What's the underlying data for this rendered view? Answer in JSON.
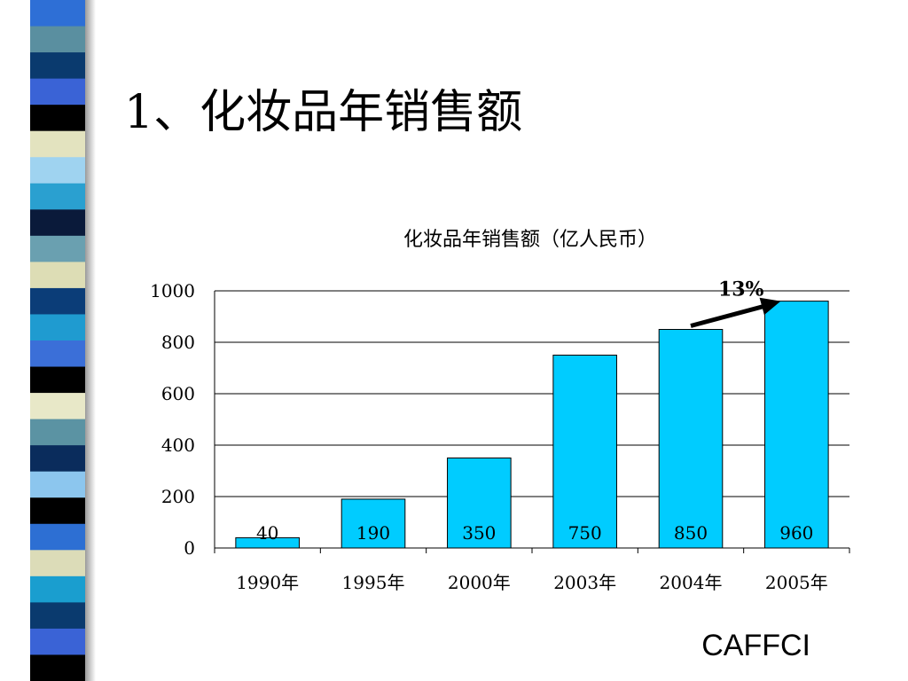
{
  "slide": {
    "title": "1、化妆品年销售额",
    "footer": "CAFFCI"
  },
  "colors": {
    "bar": "#00ccff",
    "grid": "#000000",
    "stripes": [
      "#2e6fd6",
      "#5a8fa0",
      "#0a3a6e",
      "#3a63d6",
      "#000000",
      "#e3e3bf",
      "#9fd3f0",
      "#2aa0d0",
      "#0a1a3a",
      "#6aa0b0",
      "#ddddb5",
      "#0b3d78",
      "#1f9bd0",
      "#3b6fd8",
      "#000000",
      "#e8e8c8",
      "#5b93a3",
      "#0a2c5c",
      "#8cc6ee",
      "#000000",
      "#2d6fd3",
      "#dcdcb8",
      "#1a9ecf",
      "#0a3a6e",
      "#3a63d6",
      "#000000"
    ]
  },
  "chart_data": {
    "type": "bar",
    "title": "化妆品年销售额（亿人民币）",
    "categories": [
      "1990年",
      "1995年",
      "2000年",
      "2003年",
      "2004年",
      "2005年"
    ],
    "values": [
      40,
      190,
      350,
      750,
      850,
      960
    ],
    "data_labels": [
      "40",
      "190",
      "350",
      "750",
      "850",
      "960"
    ],
    "ylim": [
      0,
      1000
    ],
    "yticks": [
      "0",
      "200",
      "400",
      "600",
      "800",
      "1000"
    ],
    "grid": true,
    "annotation": {
      "text": "13%",
      "from_category": "2004年",
      "to_category": "2005年"
    }
  }
}
